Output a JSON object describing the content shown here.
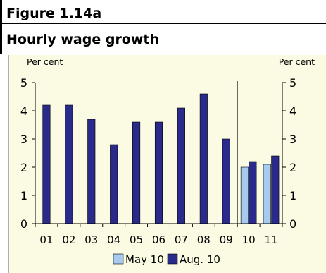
{
  "figure": {
    "number": "Figure 1.14a",
    "title": "Hourly wage growth"
  },
  "chart_data": {
    "type": "bar",
    "categories": [
      "01",
      "02",
      "03",
      "04",
      "05",
      "06",
      "07",
      "08",
      "09",
      "10",
      "11"
    ],
    "series": [
      {
        "name": "May 10",
        "color": "#a6cbef",
        "values": [
          null,
          null,
          null,
          null,
          null,
          null,
          null,
          null,
          null,
          2.0,
          2.1
        ]
      },
      {
        "name": "Aug. 10",
        "color": "#2a2a8a",
        "values": [
          4.2,
          4.2,
          3.7,
          2.8,
          3.6,
          3.6,
          4.1,
          4.6,
          3.0,
          2.2,
          2.4
        ]
      }
    ],
    "ylim": [
      0,
      5
    ],
    "yticks": [
      "0",
      "1",
      "2",
      "3",
      "4",
      "5"
    ],
    "ylabel_left": "Per cent",
    "ylabel_right": "Per cent",
    "legend_position": "bottom",
    "divider_after_category": "09",
    "background_color": "#fbfbe3"
  }
}
